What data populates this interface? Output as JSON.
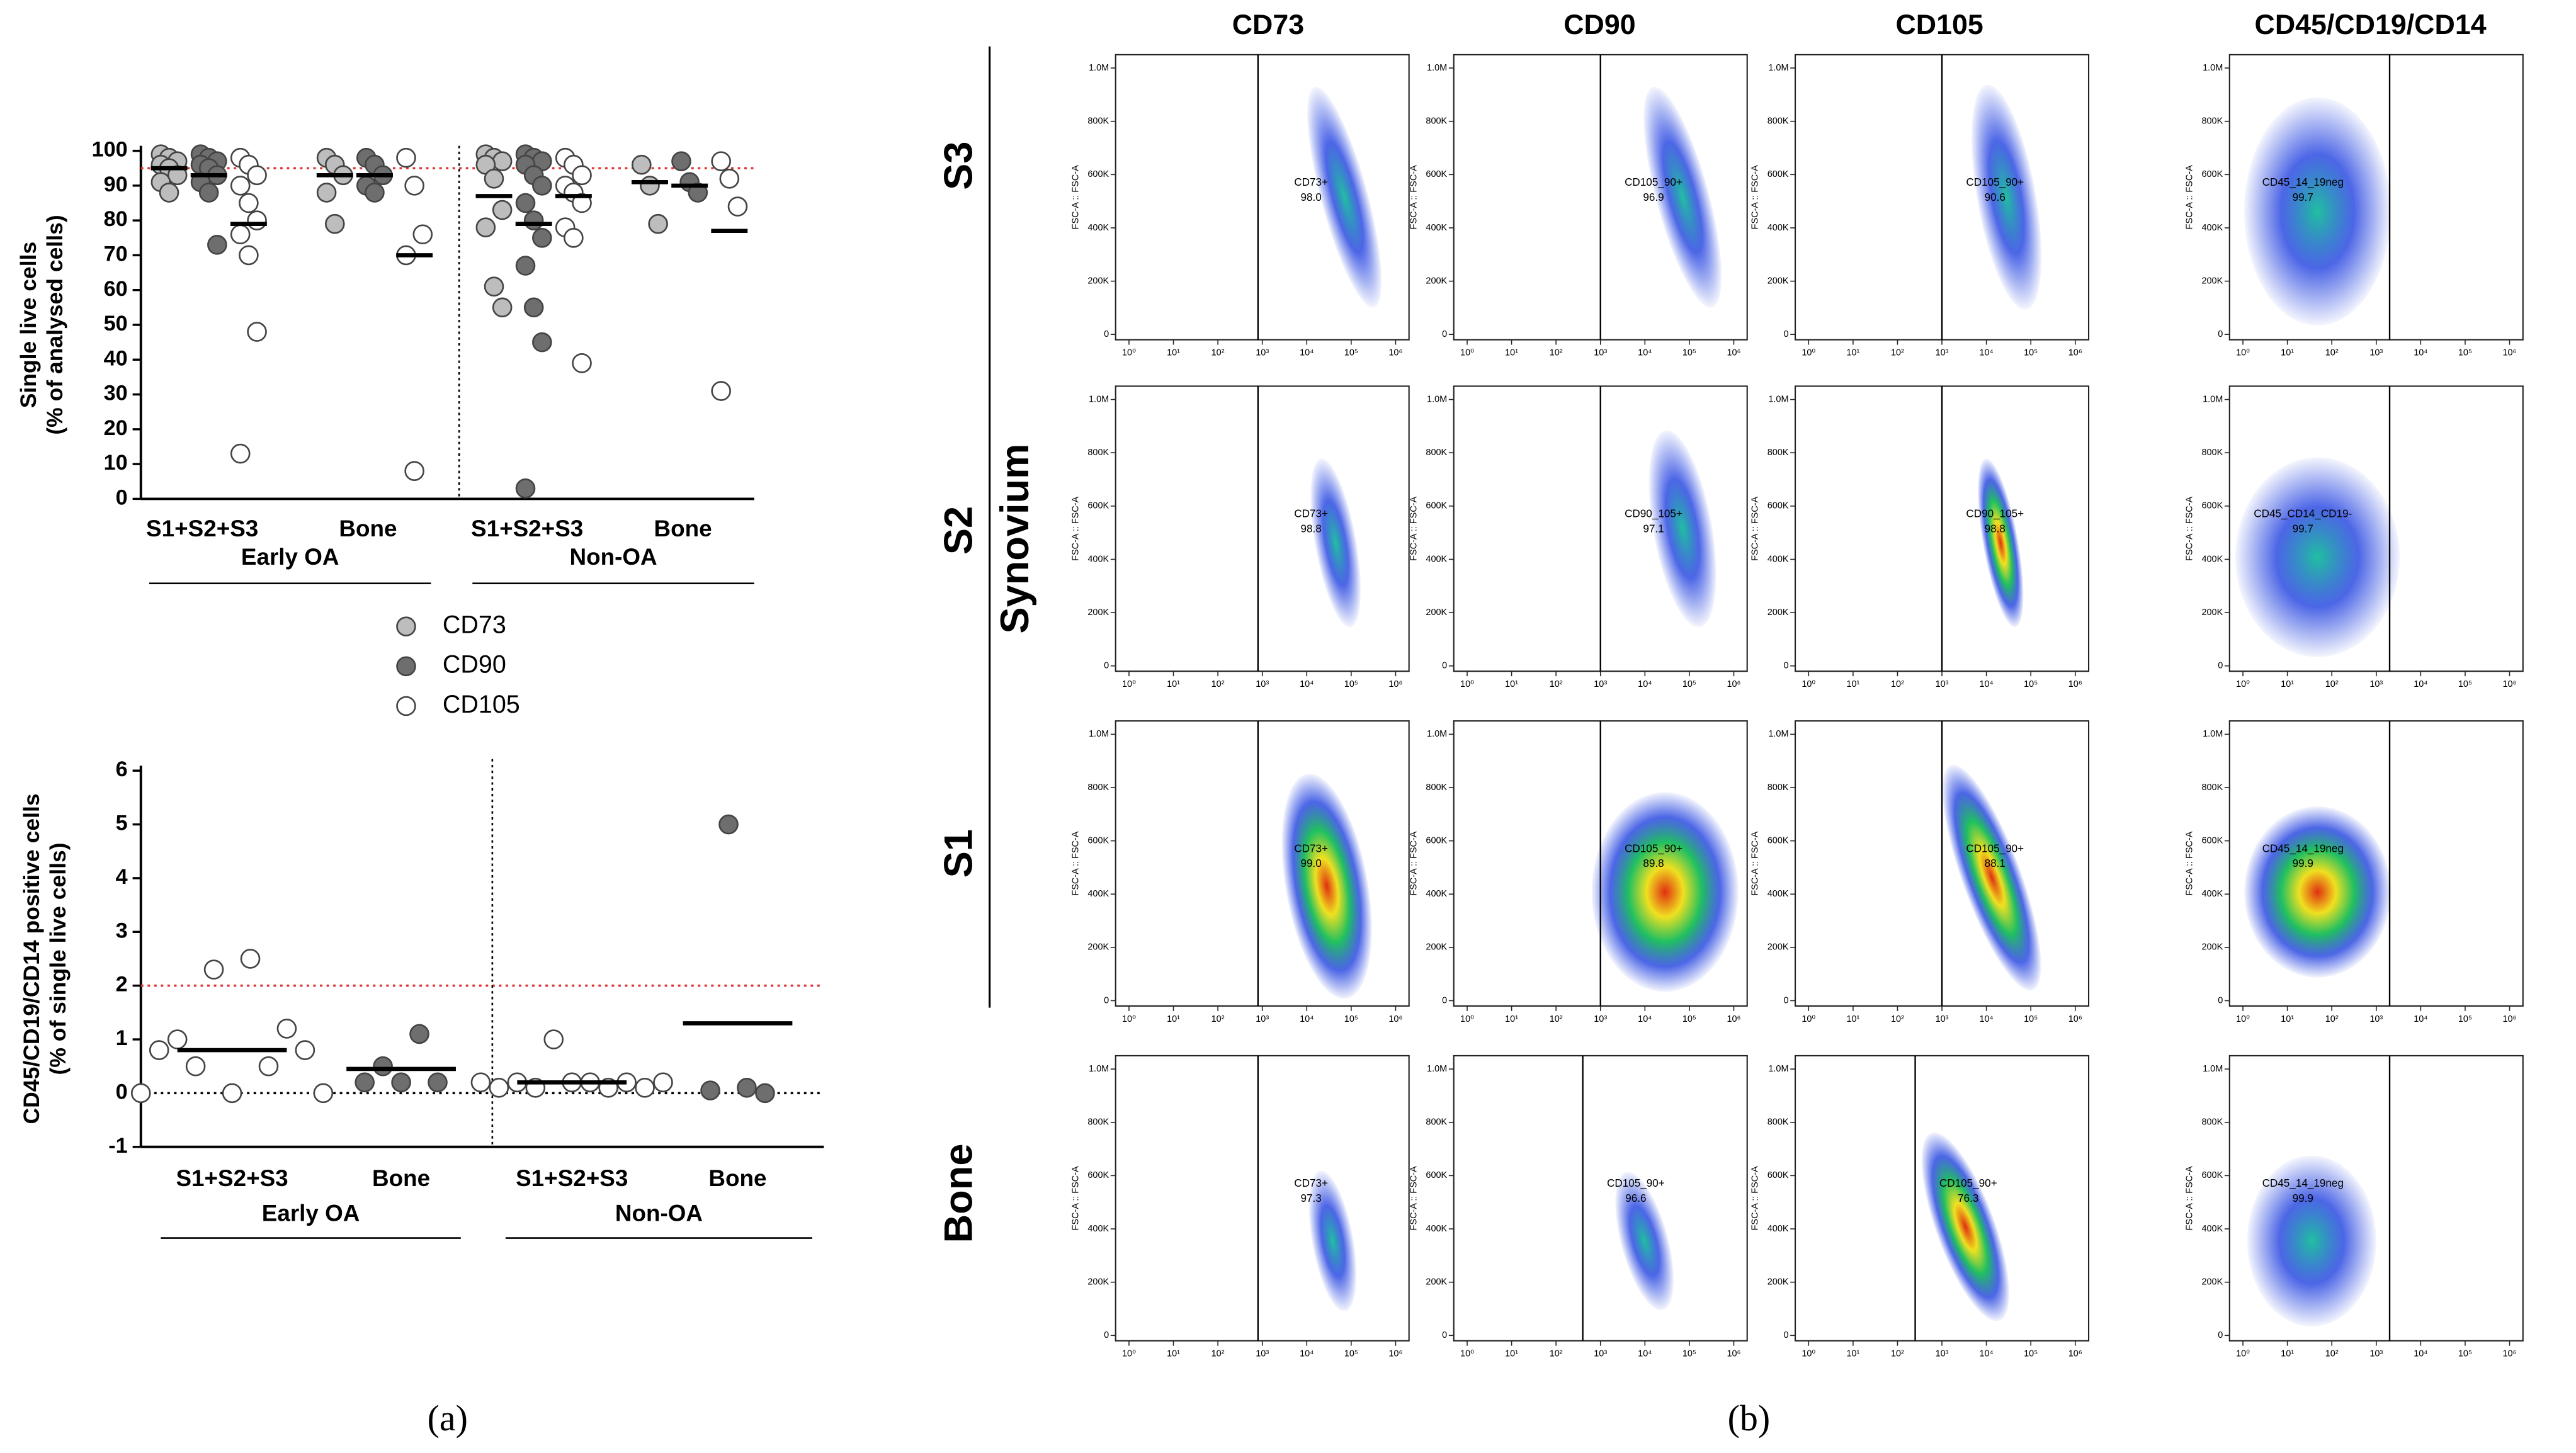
{
  "chart_data": [
    {
      "type": "dot",
      "ylabel": [
        "Single live cells",
        "(% of analysed cells)"
      ],
      "categories": [
        "S1+S2+S3",
        "Bone",
        "S1+S2+S3",
        "Bone"
      ],
      "groups": [
        "Early OA",
        "Non-OA"
      ],
      "ylim": [
        0,
        100
      ],
      "yticks": [
        0,
        10,
        20,
        30,
        40,
        50,
        60,
        70,
        80,
        90,
        100
      ],
      "reference_lines": [
        {
          "value": 95,
          "color": "#e03030"
        }
      ],
      "series": [
        {
          "name": "CD73",
          "color": "#bdbdbd",
          "values": [
            [
              99,
              98,
              97,
              96,
              95,
              93,
              91,
              88
            ],
            [
              98,
              96,
              93,
              88,
              79
            ],
            [
              99,
              98,
              97,
              96,
              92,
              83,
              78,
              61,
              55
            ],
            [
              96,
              90,
              79
            ]
          ],
          "means": [
            95,
            93,
            87,
            91
          ]
        },
        {
          "name": "CD90",
          "color": "#6e6e6e",
          "values": [
            [
              99,
              98,
              97,
              96,
              95,
              93,
              91,
              88,
              73
            ],
            [
              98,
              96,
              93,
              90,
              88
            ],
            [
              99,
              98,
              97,
              96,
              93,
              90,
              85,
              80,
              75,
              67,
              55,
              45,
              3
            ],
            [
              97,
              91,
              88
            ]
          ],
          "means": [
            93,
            93,
            79,
            90
          ]
        },
        {
          "name": "CD105",
          "color": "#ffffff",
          "values": [
            [
              98,
              96,
              93,
              90,
              85,
              80,
              76,
              70,
              48,
              13
            ],
            [
              98,
              90,
              76,
              70,
              8
            ],
            [
              98,
              96,
              93,
              90,
              88,
              85,
              78,
              75,
              39
            ],
            [
              97,
              92,
              84,
              31
            ]
          ],
          "means": [
            79,
            70,
            87,
            77
          ]
        }
      ]
    },
    {
      "type": "dot",
      "ylabel": [
        "CD45/CD19/CD14 positive cells",
        "(% of single live cells)"
      ],
      "categories": [
        "S1+S2+S3",
        "Bone",
        "S1+S2+S3",
        "Bone"
      ],
      "groups": [
        "Early OA",
        "Non-OA"
      ],
      "ylim": [
        -1,
        6
      ],
      "yticks": [
        -1,
        0,
        1,
        2,
        3,
        4,
        5,
        6
      ],
      "reference_lines": [
        {
          "value": 2,
          "color": "#e03030"
        },
        {
          "value": 0,
          "color": "#000000"
        }
      ],
      "colors": [
        "#ffffff",
        "#6e6e6e",
        "#ffffff",
        "#6e6e6e"
      ],
      "values": [
        [
          0,
          0.8,
          1,
          0.5,
          2.3,
          0,
          2.5,
          0.5,
          1.2,
          0.8,
          0
        ],
        [
          0.2,
          0.5,
          0.2,
          1.1,
          0.2
        ],
        [
          0.2,
          0.1,
          0.2,
          0.1,
          1,
          0.2,
          0.2,
          0.1,
          0.2,
          0.1,
          0.2
        ],
        [
          0.05,
          5,
          0.1,
          0.0
        ]
      ],
      "means": [
        0.8,
        0.45,
        0.2,
        1.3
      ],
      "panel_label": "(a)"
    },
    {
      "type": "flow",
      "columns": [
        "CD73",
        "CD90",
        "CD105",
        "CD45/CD19/CD14"
      ],
      "rows": [
        "S3",
        "S2",
        "S1",
        "Bone"
      ],
      "row_group": "Synovium",
      "xscale": "log",
      "xlim": [
        0.5,
        2000000
      ],
      "xticks": [
        {
          "value": 1,
          "label": "10⁰"
        },
        {
          "value": 10,
          "label": "10¹"
        },
        {
          "value": 100,
          "label": "10²"
        },
        {
          "value": 1000,
          "label": "10³"
        },
        {
          "value": 10000,
          "label": "10⁴"
        },
        {
          "value": 100000,
          "label": "10⁵"
        },
        {
          "value": 1000000,
          "label": "10⁶"
        }
      ],
      "ylim": [
        -20000,
        1050000
      ],
      "yticks": [
        0,
        {
          "value": 200000,
          "label": "200K"
        },
        {
          "value": 400000,
          "label": "400K"
        },
        {
          "value": 600000,
          "label": "600K"
        },
        {
          "value": 800000,
          "label": "800K"
        },
        {
          "value": 1000000,
          "label": "1.0M"
        }
      ],
      "ylabel": "FSC-A :: FSC-A",
      "gate_color": "#000000",
      "plots": [
        [
          {
            "gate": 800,
            "name": "CD73+",
            "percent": "98.0"
          },
          {
            "gate": 1000,
            "name": "CD105_90+",
            "percent": "96.9"
          },
          {
            "gate": 1000,
            "name": "CD105_90+",
            "percent": "90.6"
          },
          {
            "gate": 2000,
            "name": "CD45_14_19neg",
            "percent": "99.7"
          }
        ],
        [
          {
            "gate": 800,
            "name": "CD73+",
            "percent": "98.8"
          },
          {
            "gate": 1000,
            "name": "CD90_105+",
            "percent": "97.1"
          },
          {
            "gate": 1000,
            "name": "CD90_105+",
            "percent": "98.8"
          },
          {
            "gate": 2000,
            "name": "CD45_CD14_CD19-",
            "percent": "99.7"
          }
        ],
        [
          {
            "gate": 800,
            "name": "CD73+",
            "percent": "99.0"
          },
          {
            "gate": 1000,
            "name": "CD105_90+",
            "percent": "89.8"
          },
          {
            "gate": 1000,
            "name": "CD105_90+",
            "percent": "88.1"
          },
          {
            "gate": 2000,
            "name": "CD45_14_19neg",
            "percent": "99.9"
          }
        ],
        [
          {
            "gate": 800,
            "name": "CD73+",
            "percent": "97.3"
          },
          {
            "gate": 400,
            "name": "CD105_90+",
            "percent": "96.6"
          },
          {
            "gate": 250,
            "name": "CD105_90+",
            "percent": "76.3"
          },
          {
            "gate": 2000,
            "name": "CD45_14_19neg",
            "percent": "99.9"
          }
        ]
      ],
      "panel_label": "(b)"
    }
  ]
}
